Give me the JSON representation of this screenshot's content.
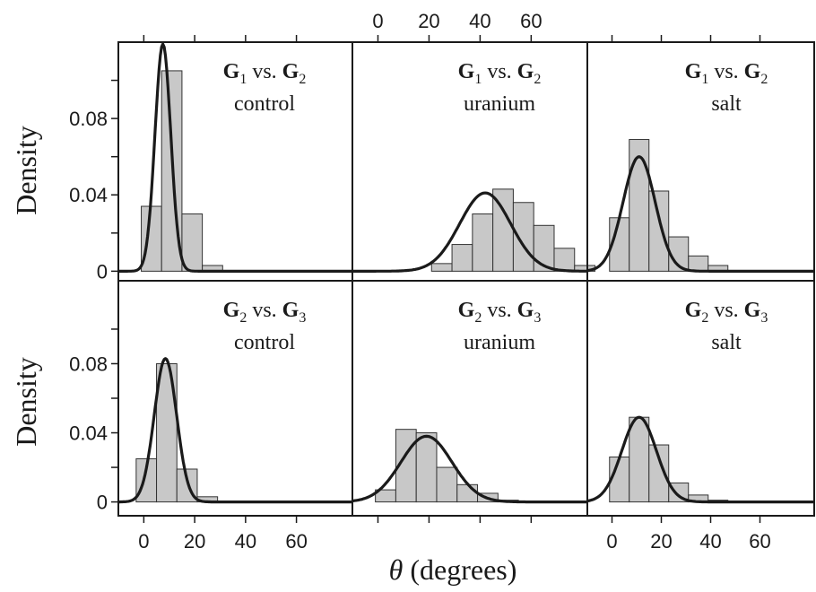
{
  "chart_data": {
    "type": "histogram-grid",
    "ylabel": "Density",
    "xlabel_symbol": "θ",
    "xlabel_text": " (degrees)",
    "xlim": [
      -10,
      82
    ],
    "x_ticks": [
      0,
      20,
      40,
      60
    ],
    "y_ticks": [
      {
        "value": 0,
        "label": "0"
      },
      {
        "value": 0.02,
        "label": ""
      },
      {
        "value": 0.04,
        "label": "0.04"
      },
      {
        "value": 0.06,
        "label": ""
      },
      {
        "value": 0.08,
        "label": "0.08"
      },
      {
        "value": 0.1,
        "label": ""
      }
    ],
    "bin_width": 8,
    "rows": [
      {
        "ylim": [
          -0.005,
          0.12
        ],
        "panels": [
          {
            "comparison": {
              "a": "G",
              "a_sub": "1",
              "vs": " vs. ",
              "b": "G",
              "b_sub": "2"
            },
            "treatment": "control",
            "bin_start": -1,
            "densities": [
              0.034,
              0.105,
              0.03,
              0.003
            ],
            "curve_mu": 7.5,
            "curve_sigma": 3.1,
            "curve_peak": 0.119
          },
          {
            "comparison": {
              "a": "G",
              "a_sub": "1",
              "vs": " vs. ",
              "b": "G",
              "b_sub": "2"
            },
            "treatment": "uranium",
            "bin_start": 21,
            "densities": [
              0.004,
              0.014,
              0.03,
              0.043,
              0.036,
              0.024,
              0.012,
              0.003
            ],
            "curve_mu": 42,
            "curve_sigma": 10,
            "curve_peak": 0.041
          },
          {
            "comparison": {
              "a": "G",
              "a_sub": "1",
              "vs": " vs. ",
              "b": "G",
              "b_sub": "2"
            },
            "treatment": "salt",
            "bin_start": -1,
            "densities": [
              0.028,
              0.069,
              0.042,
              0.018,
              0.008,
              0.003
            ],
            "curve_mu": 11,
            "curve_sigma": 6.5,
            "curve_peak": 0.06
          }
        ]
      },
      {
        "ylim": [
          -0.008,
          0.128
        ],
        "panels": [
          {
            "comparison": {
              "a": "G",
              "a_sub": "2",
              "vs": " vs. ",
              "b": "G",
              "b_sub": "3"
            },
            "treatment": "control",
            "bin_start": -3,
            "densities": [
              0.025,
              0.08,
              0.019,
              0.003
            ],
            "curve_mu": 8.5,
            "curve_sigma": 4.4,
            "curve_peak": 0.083
          },
          {
            "comparison": {
              "a": "G",
              "a_sub": "2",
              "vs": " vs. ",
              "b": "G",
              "b_sub": "3"
            },
            "treatment": "uranium",
            "bin_start": -1,
            "densities": [
              0.007,
              0.042,
              0.04,
              0.02,
              0.01,
              0.005,
              0.001
            ],
            "curve_mu": 19,
            "curve_sigma": 10,
            "curve_peak": 0.038
          },
          {
            "comparison": {
              "a": "G",
              "a_sub": "2",
              "vs": " vs. ",
              "b": "G",
              "b_sub": "3"
            },
            "treatment": "salt",
            "bin_start": -1,
            "densities": [
              0.026,
              0.049,
              0.033,
              0.011,
              0.004,
              0.001
            ],
            "curve_mu": 11,
            "curve_sigma": 7,
            "curve_peak": 0.049
          }
        ]
      }
    ]
  }
}
